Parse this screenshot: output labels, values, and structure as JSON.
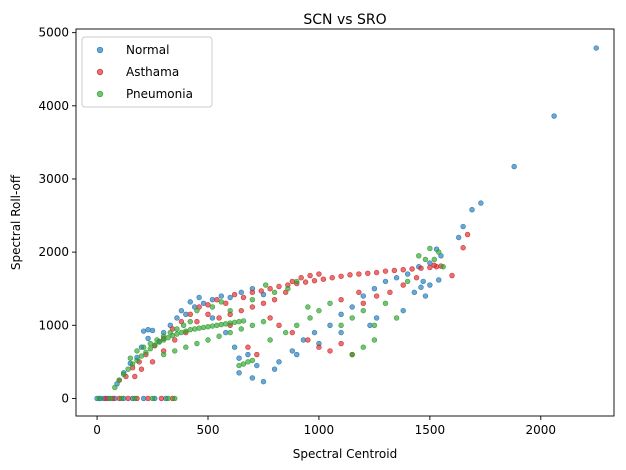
{
  "chart_data": {
    "type": "scatter",
    "title": "SCN vs SRO",
    "xlabel": "Spectral Centroid",
    "ylabel": "Spectral Roll-off",
    "xlim": [
      -95,
      2330
    ],
    "ylim": [
      -240,
      5050
    ],
    "x_ticks": [
      0,
      500,
      1000,
      1500,
      2000
    ],
    "y_ticks": [
      0,
      1000,
      2000,
      3000,
      4000,
      5000
    ],
    "grid": false,
    "legend_position": "top-left",
    "series": [
      {
        "name": "Normal",
        "color": "#1f77b4",
        "points": [
          [
            0,
            0
          ],
          [
            15,
            0
          ],
          [
            30,
            0
          ],
          [
            50,
            0
          ],
          [
            80,
            0
          ],
          [
            120,
            0
          ],
          [
            160,
            0
          ],
          [
            210,
            0
          ],
          [
            260,
            0
          ],
          [
            310,
            0
          ],
          [
            90,
            200
          ],
          [
            120,
            350
          ],
          [
            150,
            480
          ],
          [
            180,
            560
          ],
          [
            200,
            700
          ],
          [
            230,
            820
          ],
          [
            250,
            930
          ],
          [
            280,
            780
          ],
          [
            300,
            900
          ],
          [
            330,
            1000
          ],
          [
            360,
            1100
          ],
          [
            400,
            1150
          ],
          [
            440,
            1250
          ],
          [
            480,
            1300
          ],
          [
            520,
            1350
          ],
          [
            560,
            1400
          ],
          [
            600,
            1380
          ],
          [
            650,
            1450
          ],
          [
            700,
            1500
          ],
          [
            750,
            1420
          ],
          [
            230,
            940
          ],
          [
            210,
            920
          ],
          [
            380,
            1200
          ],
          [
            420,
            1320
          ],
          [
            460,
            1380
          ],
          [
            520,
            1100
          ],
          [
            580,
            900
          ],
          [
            620,
            700
          ],
          [
            680,
            600
          ],
          [
            720,
            450
          ],
          [
            640,
            350
          ],
          [
            700,
            280
          ],
          [
            750,
            230
          ],
          [
            820,
            500
          ],
          [
            880,
            650
          ],
          [
            930,
            800
          ],
          [
            980,
            900
          ],
          [
            1050,
            1000
          ],
          [
            1100,
            1150
          ],
          [
            1150,
            1250
          ],
          [
            1200,
            1400
          ],
          [
            1250,
            1500
          ],
          [
            1300,
            1600
          ],
          [
            1350,
            1650
          ],
          [
            1400,
            1700
          ],
          [
            1450,
            1800
          ],
          [
            1500,
            1850
          ],
          [
            1550,
            1950
          ],
          [
            1480,
            1400
          ],
          [
            1380,
            1200
          ],
          [
            1230,
            1000
          ],
          [
            1260,
            1100
          ],
          [
            1430,
            1450
          ],
          [
            1470,
            1600
          ],
          [
            1500,
            1550
          ],
          [
            1100,
            900
          ],
          [
            1000,
            750
          ],
          [
            900,
            600
          ],
          [
            800,
            400
          ],
          [
            640,
            550
          ],
          [
            1690,
            2580
          ],
          [
            1650,
            2350
          ],
          [
            1630,
            2200
          ],
          [
            1730,
            2670
          ],
          [
            1880,
            3170
          ],
          [
            2060,
            3860
          ],
          [
            2250,
            4790
          ],
          [
            1540,
            1620
          ],
          [
            1460,
            1520
          ],
          [
            1530,
            2040
          ]
        ]
      },
      {
        "name": "Asthama",
        "color": "#d62728",
        "points": [
          [
            40,
            0
          ],
          [
            70,
            0
          ],
          [
            100,
            0
          ],
          [
            140,
            0
          ],
          [
            180,
            0
          ],
          [
            230,
            0
          ],
          [
            290,
            0
          ],
          [
            340,
            0
          ],
          [
            100,
            250
          ],
          [
            130,
            300
          ],
          [
            160,
            420
          ],
          [
            190,
            500
          ],
          [
            220,
            600
          ],
          [
            260,
            720
          ],
          [
            300,
            820
          ],
          [
            340,
            950
          ],
          [
            380,
            1050
          ],
          [
            420,
            1150
          ],
          [
            460,
            1250
          ],
          [
            500,
            1280
          ],
          [
            540,
            1350
          ],
          [
            580,
            1300
          ],
          [
            620,
            1420
          ],
          [
            660,
            1380
          ],
          [
            700,
            1450
          ],
          [
            740,
            1470
          ],
          [
            780,
            1500
          ],
          [
            820,
            1530
          ],
          [
            860,
            1550
          ],
          [
            900,
            1570
          ],
          [
            940,
            1590
          ],
          [
            980,
            1610
          ],
          [
            1020,
            1630
          ],
          [
            1060,
            1650
          ],
          [
            1100,
            1670
          ],
          [
            1140,
            1690
          ],
          [
            1180,
            1700
          ],
          [
            1220,
            1710
          ],
          [
            1260,
            1720
          ],
          [
            1300,
            1740
          ],
          [
            1340,
            1750
          ],
          [
            1380,
            1760
          ],
          [
            1420,
            1770
          ],
          [
            1460,
            1780
          ],
          [
            1500,
            1790
          ],
          [
            1530,
            1800
          ],
          [
            1550,
            1810
          ],
          [
            1520,
            1820
          ],
          [
            880,
            1600
          ],
          [
            920,
            1650
          ],
          [
            960,
            1680
          ],
          [
            1000,
            1700
          ],
          [
            850,
            1450
          ],
          [
            800,
            1350
          ],
          [
            750,
            1300
          ],
          [
            700,
            1250
          ],
          [
            650,
            1200
          ],
          [
            600,
            1150
          ],
          [
            780,
            1100
          ],
          [
            820,
            1000
          ],
          [
            880,
            900
          ],
          [
            950,
            800
          ],
          [
            1000,
            700
          ],
          [
            1050,
            650
          ],
          [
            1100,
            750
          ],
          [
            1150,
            600
          ],
          [
            720,
            600
          ],
          [
            680,
            700
          ],
          [
            600,
            1000
          ],
          [
            550,
            1100
          ],
          [
            500,
            1150
          ],
          [
            450,
            1050
          ],
          [
            400,
            900
          ],
          [
            350,
            800
          ],
          [
            300,
            650
          ],
          [
            250,
            500
          ],
          [
            200,
            400
          ],
          [
            170,
            300
          ],
          [
            1200,
            1300
          ],
          [
            1260,
            1400
          ],
          [
            1320,
            1450
          ],
          [
            1380,
            1550
          ],
          [
            1440,
            1650
          ],
          [
            1650,
            2060
          ],
          [
            1670,
            2240
          ],
          [
            1600,
            1680
          ],
          [
            1180,
            1450
          ],
          [
            1100,
            1350
          ]
        ]
      },
      {
        "name": "Pneumonia",
        "color": "#2ca02c",
        "points": [
          [
            10,
            0
          ],
          [
            60,
            0
          ],
          [
            110,
            0
          ],
          [
            170,
            0
          ],
          [
            250,
            0
          ],
          [
            320,
            0
          ],
          [
            350,
            0
          ],
          [
            80,
            150
          ],
          [
            100,
            250
          ],
          [
            120,
            330
          ],
          [
            140,
            400
          ],
          [
            160,
            470
          ],
          [
            180,
            520
          ],
          [
            200,
            580
          ],
          [
            220,
            630
          ],
          [
            240,
            680
          ],
          [
            260,
            730
          ],
          [
            280,
            770
          ],
          [
            300,
            800
          ],
          [
            320,
            830
          ],
          [
            340,
            860
          ],
          [
            360,
            880
          ],
          [
            380,
            900
          ],
          [
            400,
            920
          ],
          [
            420,
            940
          ],
          [
            440,
            950
          ],
          [
            460,
            960
          ],
          [
            480,
            970
          ],
          [
            500,
            980
          ],
          [
            520,
            990
          ],
          [
            540,
            1000
          ],
          [
            560,
            1010
          ],
          [
            580,
            1020
          ],
          [
            600,
            1030
          ],
          [
            620,
            1040
          ],
          [
            640,
            1050
          ],
          [
            660,
            1060
          ],
          [
            150,
            550
          ],
          [
            180,
            650
          ],
          [
            210,
            700
          ],
          [
            240,
            750
          ],
          [
            270,
            800
          ],
          [
            300,
            850
          ],
          [
            330,
            900
          ],
          [
            360,
            950
          ],
          [
            390,
            1000
          ],
          [
            420,
            1050
          ],
          [
            300,
            600
          ],
          [
            350,
            650
          ],
          [
            400,
            700
          ],
          [
            450,
            750
          ],
          [
            500,
            800
          ],
          [
            550,
            850
          ],
          [
            600,
            900
          ],
          [
            650,
            950
          ],
          [
            700,
            1000
          ],
          [
            750,
            1050
          ],
          [
            450,
            1200
          ],
          [
            520,
            1250
          ],
          [
            560,
            1320
          ],
          [
            600,
            1200
          ],
          [
            700,
            1350
          ],
          [
            800,
            1450
          ],
          [
            860,
            1500
          ],
          [
            760,
            1550
          ],
          [
            900,
            1600
          ],
          [
            950,
            1250
          ],
          [
            780,
            800
          ],
          [
            850,
            900
          ],
          [
            900,
            1000
          ],
          [
            960,
            1100
          ],
          [
            1000,
            1200
          ],
          [
            1050,
            1300
          ],
          [
            1100,
            1000
          ],
          [
            1150,
            1100
          ],
          [
            1200,
            1200
          ],
          [
            1250,
            1000
          ],
          [
            640,
            450
          ],
          [
            680,
            500
          ],
          [
            700,
            520
          ],
          [
            660,
            470
          ],
          [
            1150,
            600
          ],
          [
            1200,
            700
          ],
          [
            1250,
            800
          ],
          [
            1300,
            1300
          ],
          [
            1350,
            1100
          ],
          [
            1400,
            1600
          ],
          [
            1450,
            1950
          ],
          [
            1500,
            2050
          ],
          [
            1540,
            2000
          ],
          [
            1520,
            1900
          ],
          [
            1560,
            1800
          ],
          [
            1480,
            1900
          ]
        ]
      }
    ]
  }
}
